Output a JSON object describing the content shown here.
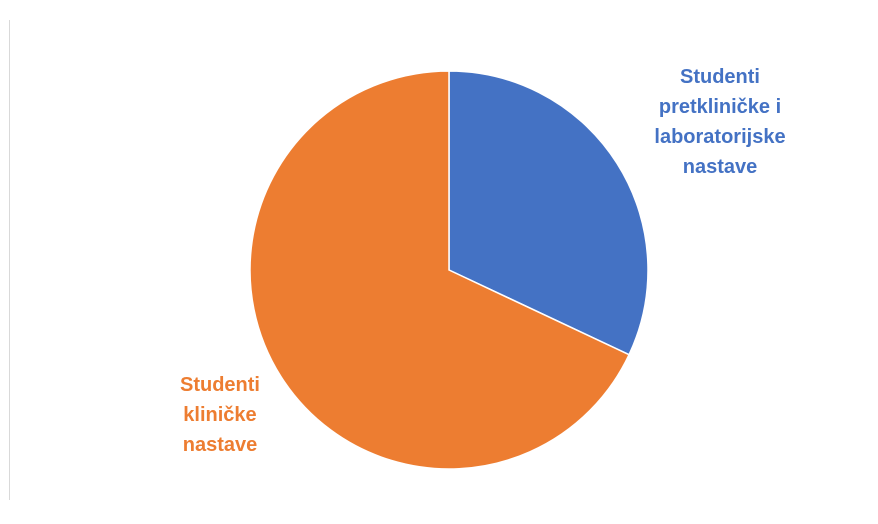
{
  "chart_data": {
    "type": "pie",
    "title": "",
    "slices": [
      {
        "label": "Studenti\npretkliničke i\nlaboratorijske\nnastave",
        "value": 32,
        "color": "#4472C4"
      },
      {
        "label": "Studenti\nkliničke\nnastave",
        "value": 68,
        "color": "#ED7D31"
      }
    ],
    "start_angle_deg": 0,
    "direction": "clockwise",
    "legend": "none",
    "data_labels": "outside"
  }
}
